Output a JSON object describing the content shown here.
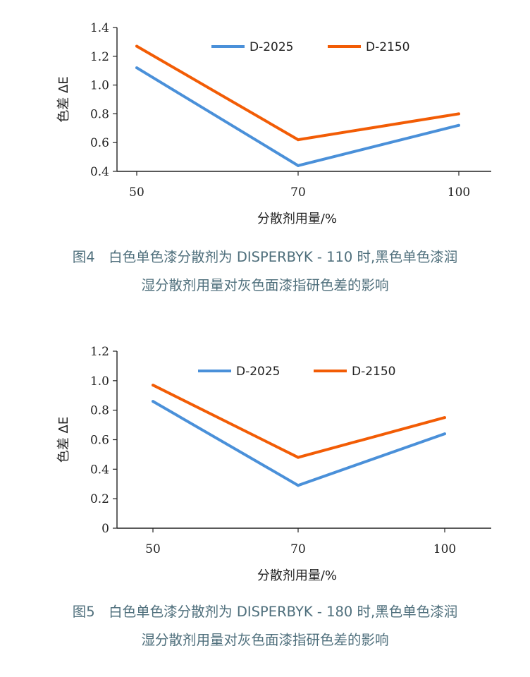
{
  "colors": {
    "series1": "#4a90d9",
    "series2": "#f25c05",
    "axis": "#222222",
    "caption": "#4f6f7c"
  },
  "chart_data": [
    {
      "type": "line",
      "title": "",
      "xlabel": "分散剂用量/%",
      "ylabel": "色差 ΔE",
      "categories": [
        "50",
        "70",
        "100"
      ],
      "y_ticks": [
        "0.4",
        "0.6",
        "0.8",
        "1.0",
        "1.2",
        "1.4"
      ],
      "ylim": [
        0.4,
        1.4
      ],
      "grid": false,
      "legend_position": "top-right",
      "series": [
        {
          "name": "D-2025",
          "values": [
            1.12,
            0.44,
            0.72
          ]
        },
        {
          "name": "D-2150",
          "values": [
            1.27,
            0.62,
            0.8
          ]
        }
      ]
    },
    {
      "type": "line",
      "title": "",
      "xlabel": "分散剂用量/%",
      "ylabel": "色差 ΔE",
      "categories": [
        "50",
        "70",
        "100"
      ],
      "y_ticks": [
        "0",
        "0.2",
        "0.4",
        "0.6",
        "0.8",
        "1.0",
        "1.2"
      ],
      "ylim": [
        0,
        1.2
      ],
      "grid": false,
      "legend_position": "top-right",
      "series": [
        {
          "name": "D-2025",
          "values": [
            0.86,
            0.29,
            0.64
          ]
        },
        {
          "name": "D-2150",
          "values": [
            0.97,
            0.48,
            0.75
          ]
        }
      ]
    }
  ],
  "captions": [
    {
      "line1": "图4　白色单色漆分散剂为 DISPERBYK - 110 时,黑色单色漆润",
      "line2": "湿分散剂用量对灰色面漆指研色差的影响"
    },
    {
      "line1": "图5　白色单色漆分散剂为 DISPERBYK - 180 时,黑色单色漆润",
      "line2": "湿分散剂用量对灰色面漆指研色差的影响"
    }
  ]
}
